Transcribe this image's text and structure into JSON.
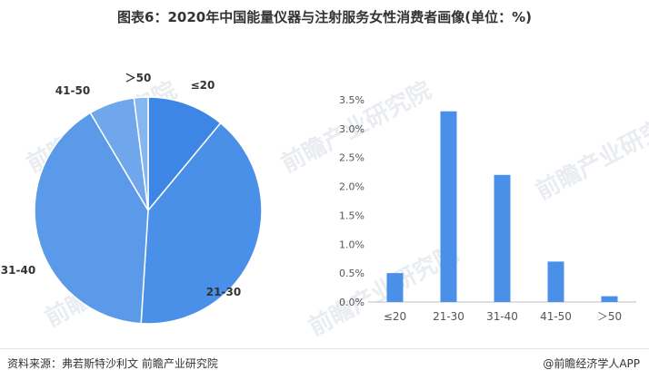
{
  "title": "图表6：2020年中国能量仪器与注射服务女性消费者画像(单位：%)",
  "footer": {
    "source": "资料来源：弗若斯特沙利文 前瞻产业研究院",
    "brand": "@前瞻经济学人APP"
  },
  "watermark": "前瞻产业研究院",
  "chart_data": [
    {
      "type": "pie",
      "categories": [
        "≤20",
        "21-30",
        "31-40",
        "41-50",
        "＞50"
      ],
      "values": [
        11.0,
        40.0,
        40.5,
        6.5,
        2.0
      ],
      "colors": [
        "#3e86e6",
        "#4a8fe8",
        "#5a9ae9",
        "#6fa6ec",
        "#86b6f0"
      ]
    },
    {
      "type": "bar",
      "categories": [
        "≤20",
        "21-30",
        "31-40",
        "41-50",
        "＞50"
      ],
      "values": [
        0.5,
        3.3,
        2.2,
        0.7,
        0.1
      ],
      "ylim": [
        0,
        3.5
      ],
      "yticks": [
        "0.0%",
        "0.5%",
        "1.0%",
        "1.5%",
        "2.0%",
        "2.5%",
        "3.0%",
        "3.5%"
      ],
      "bar_color": "#4a8fe8",
      "grid": false
    }
  ]
}
